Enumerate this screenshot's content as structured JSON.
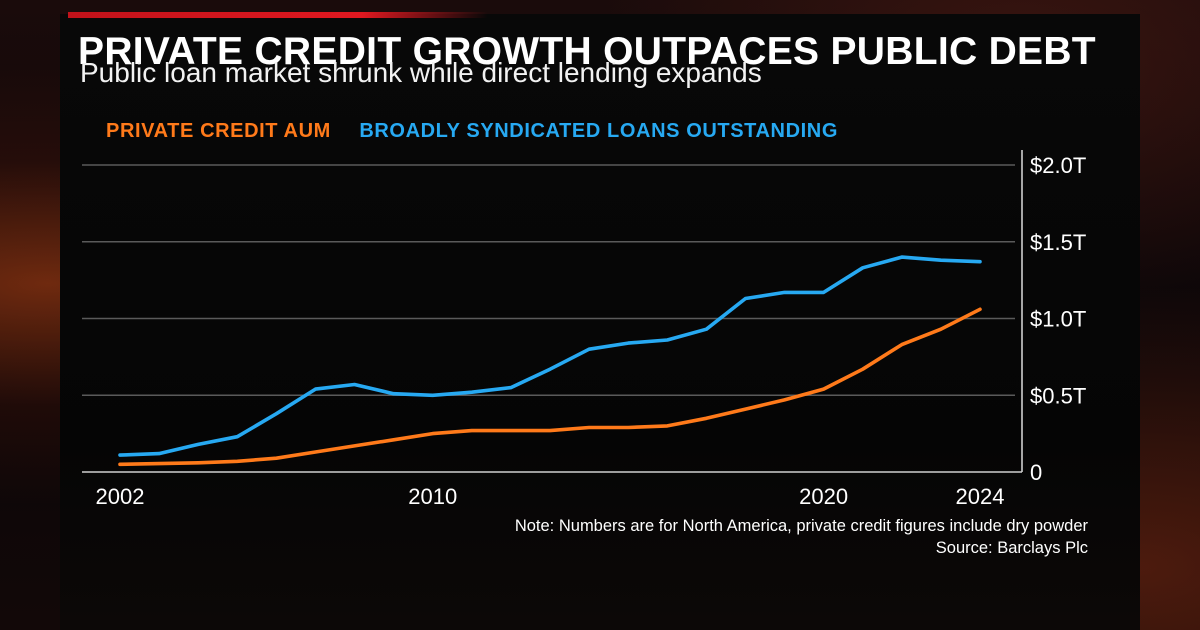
{
  "title": "PRIVATE CREDIT GROWTH OUTPACES PUBLIC DEBT",
  "subtitle": "Public loan market shrunk while direct lending expands",
  "colors": {
    "private_credit": "#ff7a1a",
    "bsl": "#27a9f2",
    "accent_bar": "#e01820"
  },
  "note": "Note: Numbers are for North America, private credit figures include dry powder",
  "source": "Source: Barclays Plc",
  "chart_data": {
    "type": "line",
    "grid": true,
    "legend_position": "top-left",
    "ylim": [
      0,
      2.0
    ],
    "xlim": [
      2002,
      2024
    ],
    "y_ticks": [
      {
        "value": 2.0,
        "label": "$2.0T"
      },
      {
        "value": 1.5,
        "label": "$1.5T"
      },
      {
        "value": 1.0,
        "label": "$1.0T"
      },
      {
        "value": 0.5,
        "label": "$0.5T"
      },
      {
        "value": 0,
        "label": "0"
      }
    ],
    "x_ticks": [
      {
        "value": 2002,
        "label": "2002"
      },
      {
        "value": 2010,
        "label": "2010"
      },
      {
        "value": 2020,
        "label": "2020"
      },
      {
        "value": 2024,
        "label": "2024"
      }
    ],
    "x": [
      2002,
      2003,
      2004,
      2005,
      2006,
      2007,
      2008,
      2009,
      2010,
      2011,
      2012,
      2013,
      2014,
      2015,
      2016,
      2017,
      2018,
      2019,
      2020,
      2021,
      2022,
      2023,
      2024
    ],
    "series": [
      {
        "name": "BROADLY SYNDICATED LOANS OUTSTANDING",
        "values": [
          0.11,
          0.12,
          0.18,
          0.23,
          0.38,
          0.54,
          0.57,
          0.51,
          0.5,
          0.52,
          0.55,
          0.67,
          0.8,
          0.84,
          0.86,
          0.93,
          1.13,
          1.17,
          1.17,
          1.33,
          1.4,
          1.38,
          1.37
        ]
      },
      {
        "name": "PRIVATE CREDIT AUM",
        "values": [
          0.05,
          0.055,
          0.06,
          0.07,
          0.09,
          0.13,
          0.17,
          0.21,
          0.25,
          0.27,
          0.27,
          0.27,
          0.29,
          0.29,
          0.3,
          0.35,
          0.41,
          0.47,
          0.54,
          0.67,
          0.83,
          0.93,
          1.06
        ]
      }
    ]
  }
}
